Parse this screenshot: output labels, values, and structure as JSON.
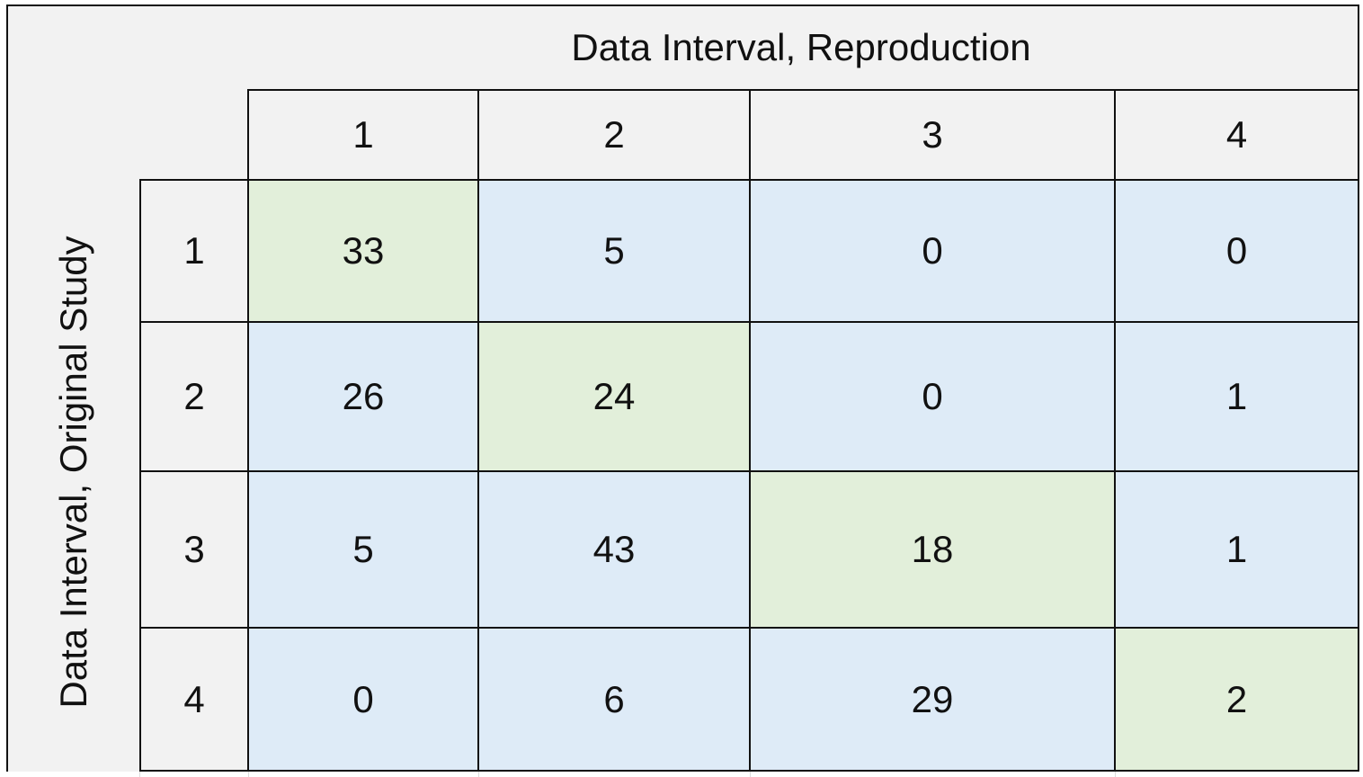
{
  "chart_data": {
    "type": "table",
    "title": "",
    "col_axis_label": "Data Interval, Reproduction",
    "row_axis_label": "Data Interval, Original Study",
    "columns": [
      "1",
      "2",
      "3",
      "4"
    ],
    "rows": [
      "1",
      "2",
      "3",
      "4"
    ],
    "values": [
      [
        33,
        5,
        0,
        0
      ],
      [
        26,
        24,
        0,
        1
      ],
      [
        5,
        43,
        18,
        1
      ],
      [
        0,
        6,
        29,
        2
      ]
    ],
    "colors": {
      "diagonal": "#e2efda",
      "off_diagonal": "#deebf7",
      "header": "#f2f2f2"
    }
  }
}
